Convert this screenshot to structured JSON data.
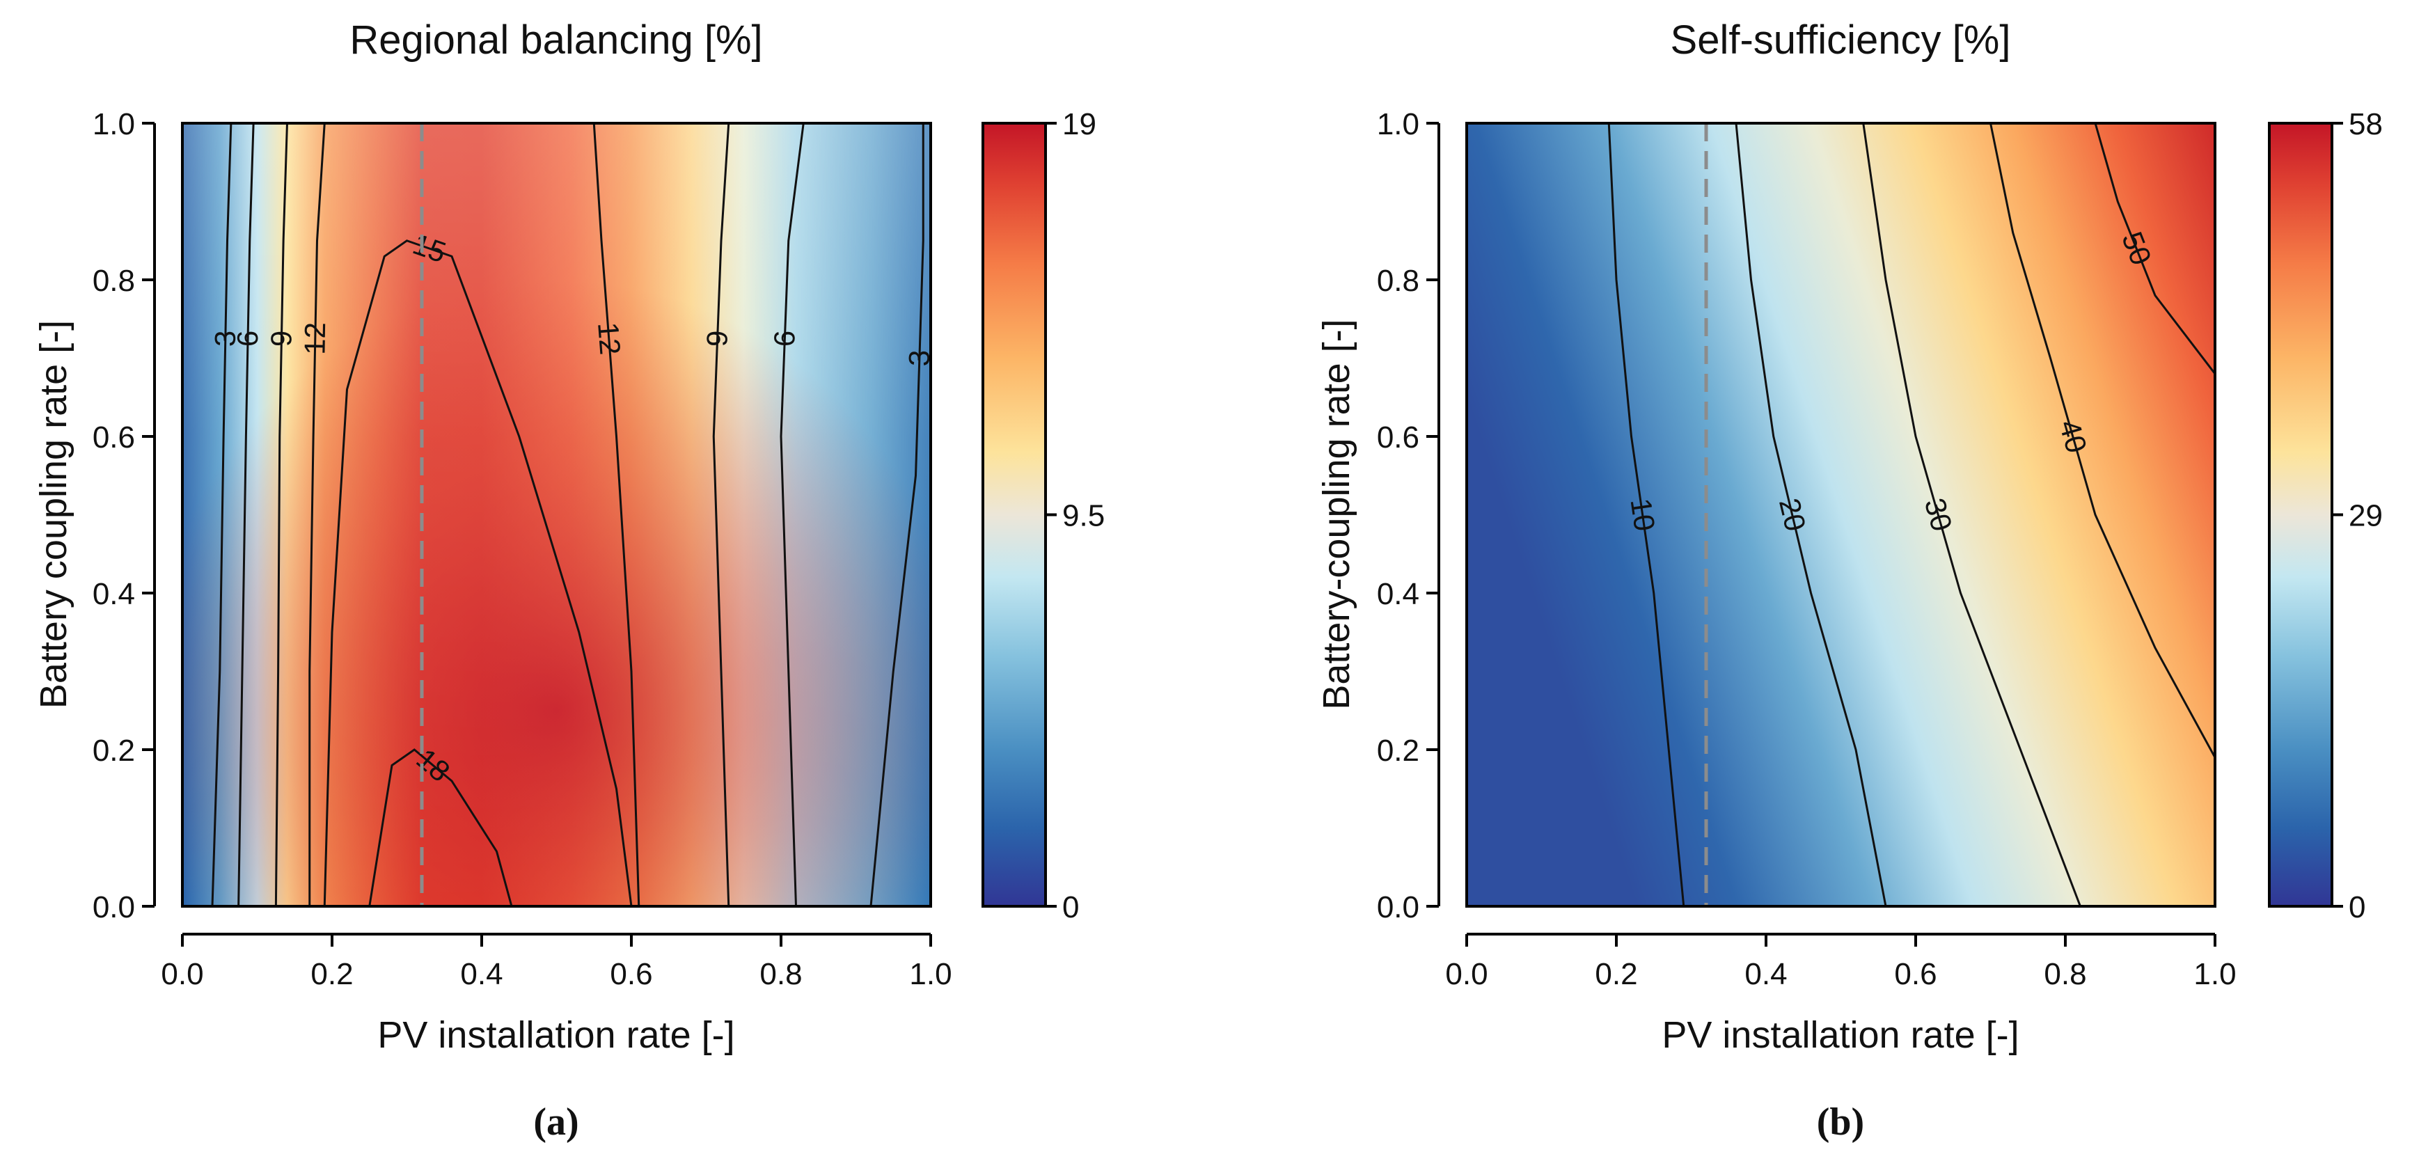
{
  "chart_data": [
    {
      "type": "heatmap",
      "panel_label": "(a)",
      "title": "Regional balancing [%]",
      "xlabel": "PV installation rate [-]",
      "ylabel": "Battery coupling rate [-]",
      "xlim": [
        0.0,
        1.0
      ],
      "ylim": [
        0.0,
        1.0
      ],
      "xticks": [
        "0.0",
        "0.2",
        "0.4",
        "0.6",
        "0.8",
        "1.0"
      ],
      "yticks": [
        "0.0",
        "0.2",
        "0.4",
        "0.6",
        "0.8",
        "1.0"
      ],
      "colorbar": {
        "min": 0,
        "max": 19,
        "tick_labels": [
          "0",
          "9.5",
          "19"
        ]
      },
      "reference_line_x": 0.32,
      "contours": [
        {
          "level": 3,
          "label": "3",
          "points": [
            [
              0.04,
              0.0
            ],
            [
              0.05,
              0.3
            ],
            [
              0.055,
              0.6
            ],
            [
              0.06,
              0.85
            ],
            [
              0.065,
              1.0
            ]
          ]
        },
        {
          "level": 6,
          "label": "6",
          "points": [
            [
              0.075,
              0.0
            ],
            [
              0.08,
              0.3
            ],
            [
              0.085,
              0.6
            ],
            [
              0.09,
              0.85
            ],
            [
              0.095,
              1.0
            ]
          ]
        },
        {
          "level": 9,
          "label": "9",
          "points": [
            [
              0.125,
              0.0
            ],
            [
              0.128,
              0.3
            ],
            [
              0.13,
              0.6
            ],
            [
              0.135,
              0.85
            ],
            [
              0.14,
              1.0
            ]
          ]
        },
        {
          "level": 12,
          "label": "12",
          "points": [
            [
              0.17,
              0.0
            ],
            [
              0.17,
              0.3
            ],
            [
              0.175,
              0.6
            ],
            [
              0.18,
              0.85
            ],
            [
              0.19,
              1.0
            ]
          ]
        },
        {
          "level": 15,
          "label": "15",
          "points": [
            [
              0.19,
              0.0
            ],
            [
              0.2,
              0.35
            ],
            [
              0.22,
              0.66
            ],
            [
              0.27,
              0.83
            ],
            [
              0.3,
              0.85
            ],
            [
              0.36,
              0.83
            ],
            [
              0.45,
              0.6
            ],
            [
              0.53,
              0.35
            ],
            [
              0.58,
              0.15
            ],
            [
              0.6,
              0.0
            ]
          ]
        },
        {
          "level": 18,
          "label": "18",
          "points": [
            [
              0.25,
              0.0
            ],
            [
              0.28,
              0.18
            ],
            [
              0.31,
              0.2
            ],
            [
              0.36,
              0.16
            ],
            [
              0.42,
              0.07
            ],
            [
              0.44,
              0.0
            ]
          ]
        },
        {
          "level": 12,
          "label": "12",
          "points": [
            [
              0.61,
              0.0
            ],
            [
              0.6,
              0.3
            ],
            [
              0.58,
              0.6
            ],
            [
              0.56,
              0.85
            ],
            [
              0.55,
              1.0
            ]
          ]
        },
        {
          "level": 9,
          "label": "9",
          "points": [
            [
              0.73,
              0.0
            ],
            [
              0.72,
              0.3
            ],
            [
              0.71,
              0.6
            ],
            [
              0.72,
              0.85
            ],
            [
              0.73,
              1.0
            ]
          ]
        },
        {
          "level": 6,
          "label": "6",
          "points": [
            [
              0.82,
              0.0
            ],
            [
              0.81,
              0.3
            ],
            [
              0.8,
              0.6
            ],
            [
              0.81,
              0.85
            ],
            [
              0.83,
              1.0
            ]
          ]
        },
        {
          "level": 3,
          "label": "3",
          "points": [
            [
              0.92,
              0.0
            ],
            [
              0.95,
              0.3
            ],
            [
              0.98,
              0.55
            ],
            [
              0.99,
              0.85
            ],
            [
              0.99,
              1.0
            ]
          ]
        }
      ]
    },
    {
      "type": "heatmap",
      "panel_label": "(b)",
      "title": "Self-sufficiency [%]",
      "xlabel": "PV installation rate [-]",
      "ylabel": "Battery-coupling rate [-]",
      "xlim": [
        0.0,
        1.0
      ],
      "ylim": [
        0.0,
        1.0
      ],
      "xticks": [
        "0.0",
        "0.2",
        "0.4",
        "0.6",
        "0.8",
        "1.0"
      ],
      "yticks": [
        "0.0",
        "0.2",
        "0.4",
        "0.6",
        "0.8",
        "1.0"
      ],
      "colorbar": {
        "min": 0,
        "max": 58,
        "tick_labels": [
          "0",
          "29",
          "58"
        ]
      },
      "reference_line_x": 0.32,
      "contours": [
        {
          "level": 10,
          "label": "10",
          "points": [
            [
              0.29,
              0.0
            ],
            [
              0.27,
              0.2
            ],
            [
              0.25,
              0.4
            ],
            [
              0.22,
              0.6
            ],
            [
              0.2,
              0.8
            ],
            [
              0.19,
              1.0
            ]
          ]
        },
        {
          "level": 20,
          "label": "20",
          "points": [
            [
              0.56,
              0.0
            ],
            [
              0.52,
              0.2
            ],
            [
              0.46,
              0.4
            ],
            [
              0.41,
              0.6
            ],
            [
              0.38,
              0.8
            ],
            [
              0.36,
              1.0
            ]
          ]
        },
        {
          "level": 30,
          "label": "30",
          "points": [
            [
              0.82,
              0.0
            ],
            [
              0.74,
              0.2
            ],
            [
              0.66,
              0.4
            ],
            [
              0.6,
              0.6
            ],
            [
              0.56,
              0.8
            ],
            [
              0.53,
              1.0
            ]
          ]
        },
        {
          "level": 40,
          "label": "40",
          "points": [
            [
              1.0,
              0.19
            ],
            [
              0.92,
              0.33
            ],
            [
              0.84,
              0.5
            ],
            [
              0.78,
              0.7
            ],
            [
              0.73,
              0.86
            ],
            [
              0.7,
              1.0
            ]
          ]
        },
        {
          "level": 50,
          "label": "50",
          "points": [
            [
              1.0,
              0.68
            ],
            [
              0.92,
              0.78
            ],
            [
              0.87,
              0.9
            ],
            [
              0.84,
              1.0
            ]
          ]
        }
      ]
    }
  ]
}
